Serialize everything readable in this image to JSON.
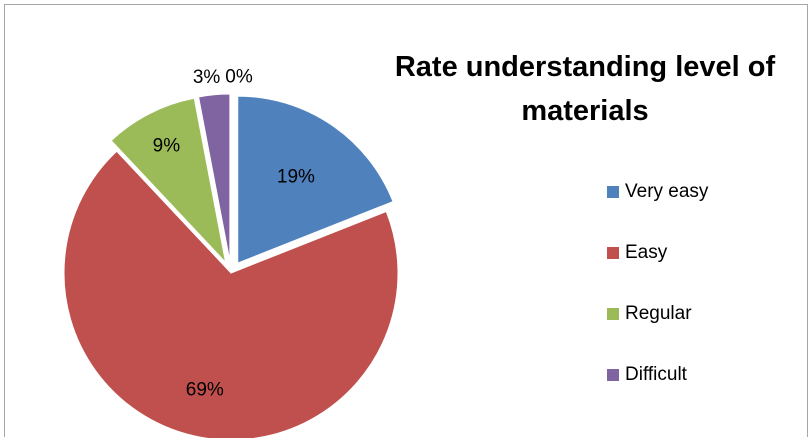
{
  "chart_data": {
    "type": "pie",
    "title": "Rate understanding level of materials",
    "categories": [
      "Very easy",
      "Easy",
      "Regular",
      "Difficult",
      ""
    ],
    "values": [
      19,
      69,
      9,
      3,
      0
    ],
    "data_labels": [
      "19%",
      "69%",
      "9%",
      "3%",
      "0%"
    ],
    "colors": [
      "#4f81bd",
      "#c0504d",
      "#9bbb59",
      "#8064a2",
      "#4bacc6"
    ],
    "legend": {
      "position": "right",
      "entries": [
        "Very easy",
        "Easy",
        "Regular",
        "Difficult"
      ]
    }
  }
}
